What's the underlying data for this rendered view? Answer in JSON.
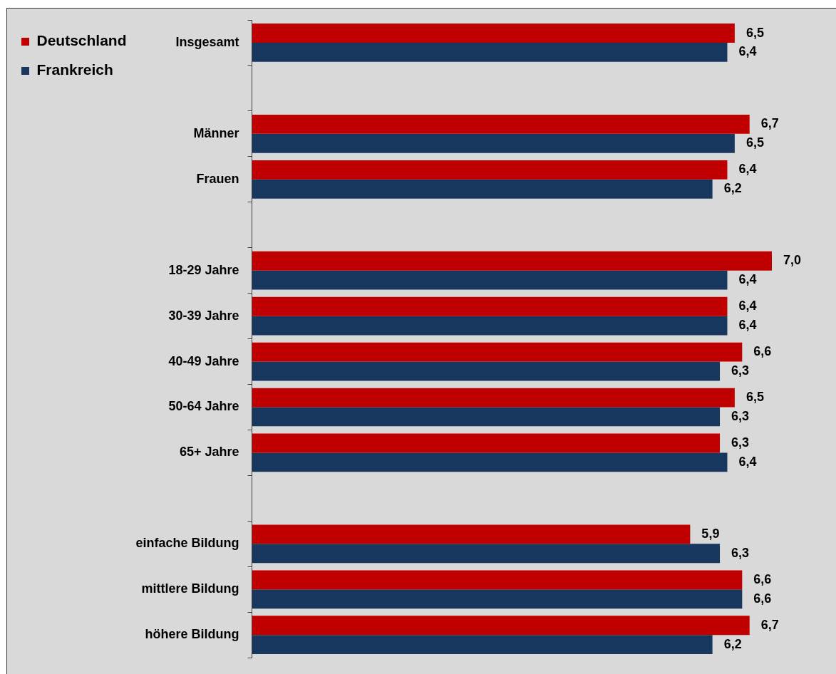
{
  "chart_data": {
    "type": "bar",
    "orientation": "horizontal",
    "categories": [
      "Insgesamt",
      null,
      "Männer",
      "Frauen",
      null,
      "18-29 Jahre",
      "30-39 Jahre",
      "40-49 Jahre",
      "50-64 Jahre",
      "65+ Jahre",
      null,
      "einfache Bildung",
      "mittlere Bildung",
      "höhere Bildung"
    ],
    "series": [
      {
        "name": "Deutschland",
        "color": "#c00000",
        "values": [
          6.5,
          null,
          6.7,
          6.4,
          null,
          7.0,
          6.4,
          6.6,
          6.5,
          6.3,
          null,
          5.9,
          6.6,
          6.7
        ],
        "value_labels": [
          "6,5",
          null,
          "6,7",
          "6,4",
          null,
          "7,0",
          "6,4",
          "6,6",
          "6,5",
          "6,3",
          null,
          "5,9",
          "6,6",
          "6,7"
        ]
      },
      {
        "name": "Frankreich",
        "color": "#17375e",
        "values": [
          6.4,
          null,
          6.5,
          6.2,
          null,
          6.4,
          6.4,
          6.3,
          6.3,
          6.4,
          null,
          6.3,
          6.6,
          6.2
        ],
        "value_labels": [
          "6,4",
          null,
          "6,5",
          "6,2",
          null,
          "6,4",
          "6,4",
          "6,3",
          "6,3",
          "6,4",
          null,
          "6,3",
          "6,6",
          "6,2"
        ]
      }
    ],
    "legend": "top left",
    "tick_labels": "y"
  }
}
